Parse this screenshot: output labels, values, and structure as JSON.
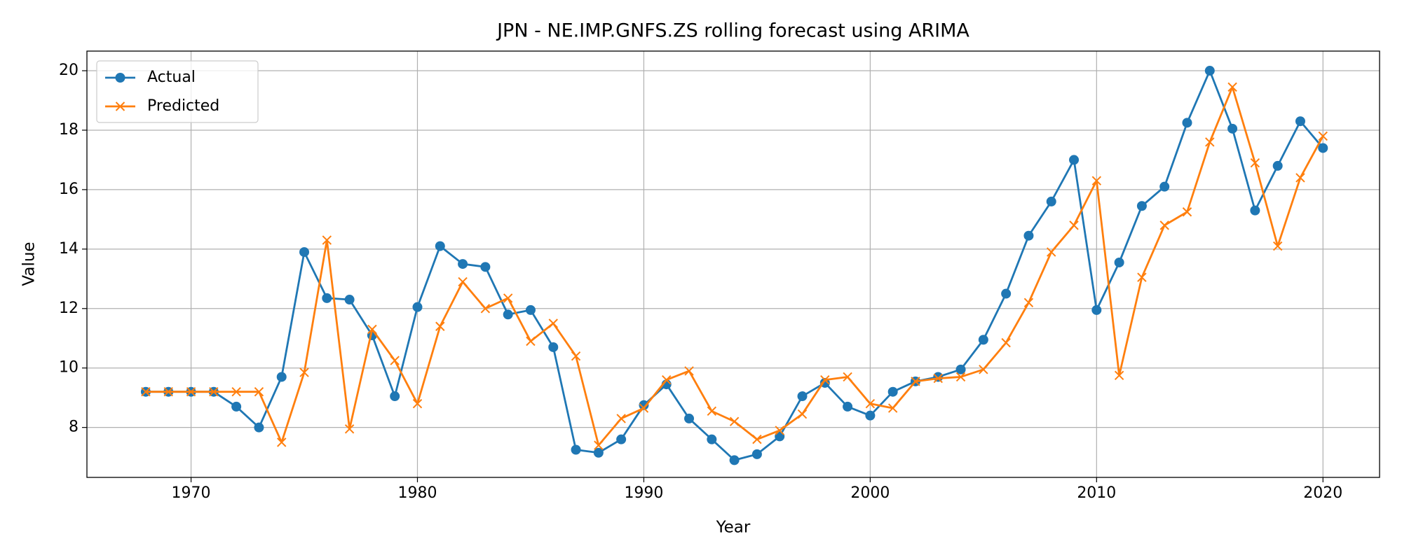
{
  "chart_data": {
    "type": "line",
    "title": "JPN - NE.IMP.GNFS.ZS rolling forecast using ARIMA",
    "xlabel": "Year",
    "ylabel": "Value",
    "x": [
      1968,
      1969,
      1970,
      1971,
      1972,
      1973,
      1974,
      1975,
      1976,
      1977,
      1978,
      1979,
      1980,
      1981,
      1982,
      1983,
      1984,
      1985,
      1986,
      1987,
      1988,
      1989,
      1990,
      1991,
      1992,
      1993,
      1994,
      1995,
      1996,
      1997,
      1998,
      1999,
      2000,
      2001,
      2002,
      2003,
      2004,
      2005,
      2006,
      2007,
      2008,
      2009,
      2010,
      2011,
      2012,
      2013,
      2014,
      2015,
      2016,
      2017,
      2018,
      2019,
      2020
    ],
    "series": [
      {
        "name": "Actual",
        "color": "#1f77b4",
        "marker": "o",
        "values": [
          9.2,
          9.2,
          9.2,
          9.2,
          8.7,
          8.0,
          9.7,
          13.9,
          12.35,
          12.3,
          11.1,
          9.05,
          12.05,
          14.1,
          13.5,
          13.4,
          11.8,
          11.95,
          10.7,
          7.25,
          7.15,
          7.6,
          8.75,
          9.45,
          8.3,
          7.6,
          6.9,
          7.1,
          7.7,
          9.05,
          9.5,
          8.7,
          8.4,
          9.2,
          9.55,
          9.7,
          9.95,
          10.95,
          12.5,
          14.45,
          15.6,
          17.0,
          11.95,
          13.55,
          15.45,
          16.1,
          18.25,
          20.0,
          18.05,
          15.3,
          16.8,
          18.3,
          17.4
        ]
      },
      {
        "name": "Predicted",
        "color": "#ff7f0e",
        "marker": "x",
        "values": [
          9.2,
          9.2,
          9.2,
          9.2,
          9.2,
          9.2,
          7.5,
          9.85,
          14.3,
          7.95,
          11.3,
          10.25,
          8.8,
          11.4,
          12.9,
          12.0,
          12.35,
          10.9,
          11.5,
          10.4,
          7.4,
          8.3,
          8.65,
          9.6,
          9.9,
          8.55,
          8.2,
          7.6,
          7.9,
          8.45,
          9.6,
          9.7,
          8.8,
          8.65,
          9.55,
          9.65,
          9.7,
          9.95,
          10.85,
          12.2,
          13.9,
          14.8,
          16.3,
          9.75,
          13.05,
          14.8,
          15.25,
          17.6,
          19.45,
          16.9,
          14.1,
          16.4,
          17.8
        ]
      }
    ],
    "xlim": [
      1965.4,
      2022.5
    ],
    "ylim": [
      6.32,
      20.66
    ],
    "xticks": [
      1970,
      1980,
      1990,
      2000,
      2010,
      2020
    ],
    "yticks": [
      8,
      10,
      12,
      14,
      16,
      18,
      20
    ],
    "grid": true,
    "legend": "upper left"
  }
}
